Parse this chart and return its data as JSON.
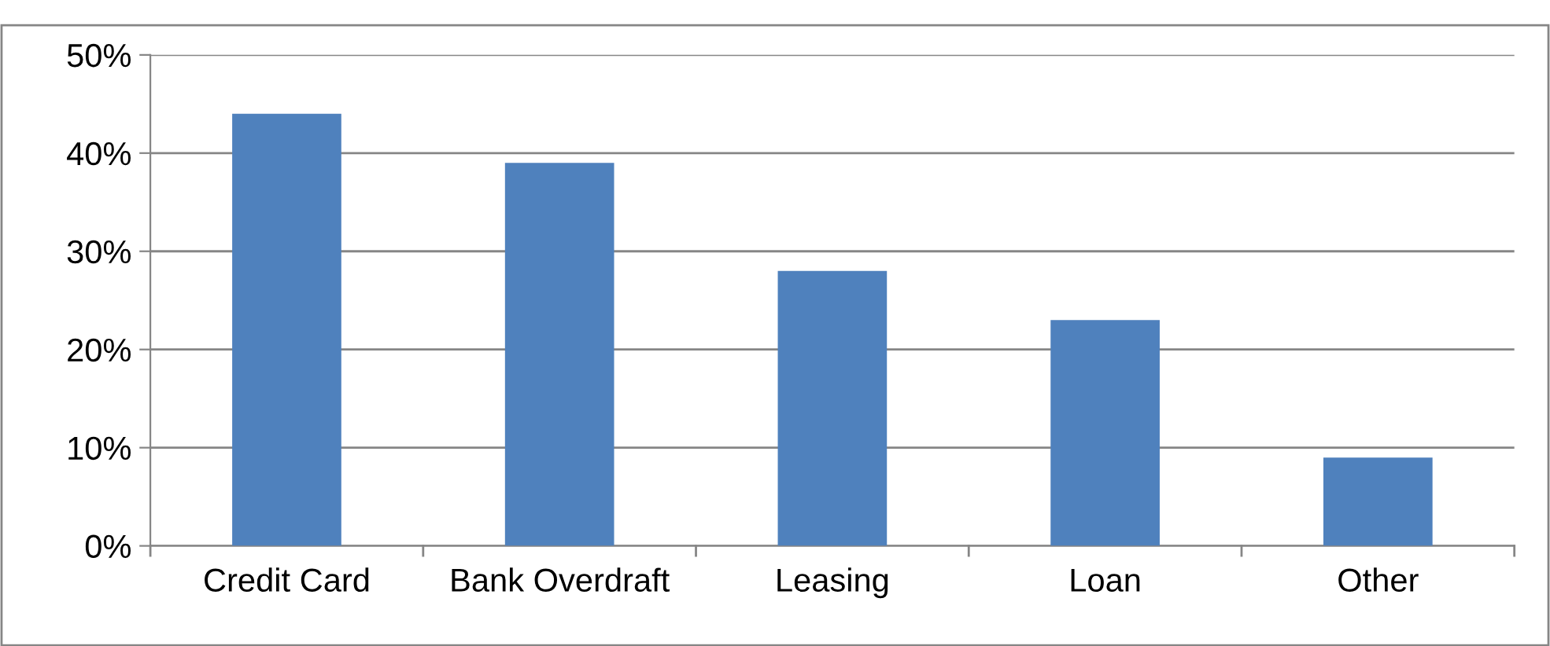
{
  "chart_data": {
    "type": "bar",
    "categories": [
      "Credit Card",
      "Bank Overdraft",
      "Leasing",
      "Loan",
      "Other"
    ],
    "values": [
      44,
      39,
      28,
      23,
      9
    ],
    "color": "#4f81bd",
    "ylim": [
      0,
      50
    ],
    "yticks": [
      {
        "value": 0,
        "label": "0%"
      },
      {
        "value": 10,
        "label": "10%"
      },
      {
        "value": 20,
        "label": "20%"
      },
      {
        "value": 30,
        "label": "30%"
      },
      {
        "value": 40,
        "label": "40%"
      },
      {
        "value": 50,
        "label": "50%"
      }
    ],
    "grid": "y",
    "legend": false
  }
}
